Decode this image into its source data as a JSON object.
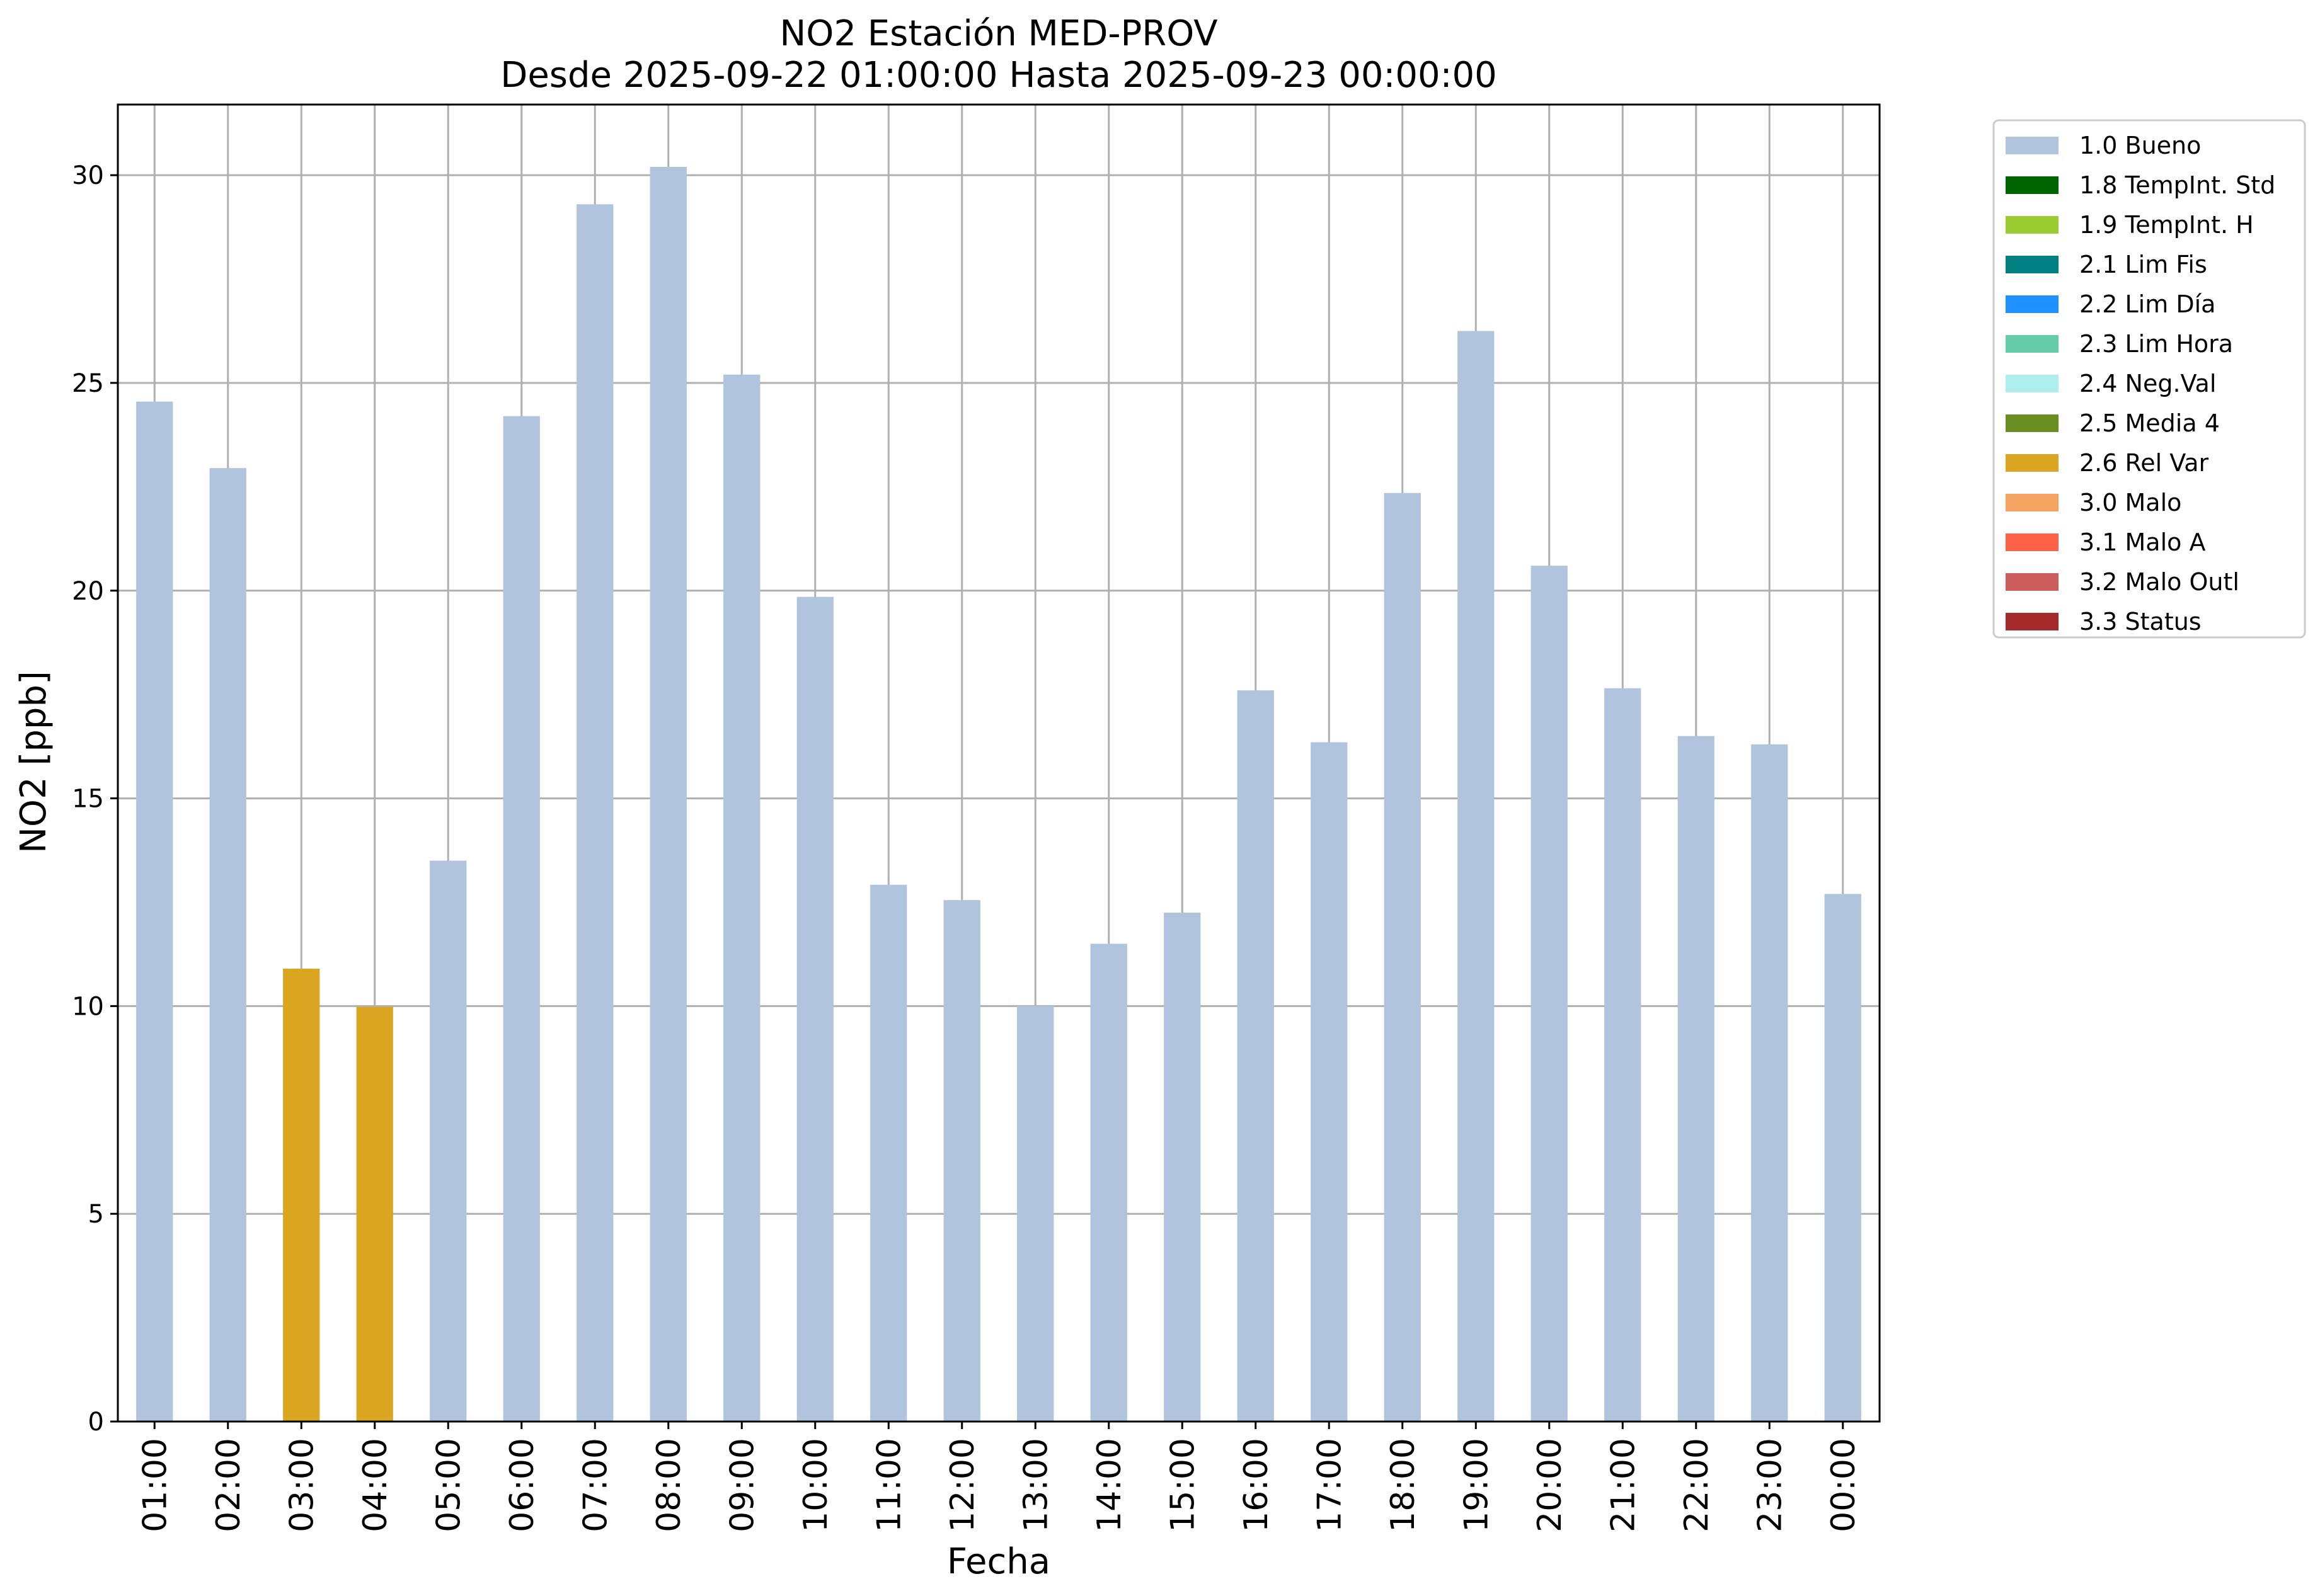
{
  "chart_data": {
    "type": "bar",
    "title": "NO2 Estación MED-PROV",
    "subtitle": "Desde 2025-09-22 01:00:00 Hasta 2025-09-23 00:00:00",
    "xlabel": "Fecha",
    "ylabel": "NO2 [ppb]",
    "ylim": [
      0,
      31.7
    ],
    "yticks": [
      0,
      5,
      10,
      15,
      20,
      25,
      30
    ],
    "grid": true,
    "legend_position": "outside-right-top",
    "categories": [
      "01:00",
      "02:00",
      "03:00",
      "04:00",
      "05:00",
      "06:00",
      "07:00",
      "08:00",
      "09:00",
      "10:00",
      "11:00",
      "12:00",
      "13:00",
      "14:00",
      "15:00",
      "16:00",
      "17:00",
      "18:00",
      "19:00",
      "20:00",
      "21:00",
      "22:00",
      "23:00",
      "00:00"
    ],
    "values": [
      24.55,
      22.95,
      10.9,
      9.98,
      13.5,
      24.2,
      29.3,
      30.2,
      25.2,
      19.85,
      12.92,
      12.55,
      10.0,
      11.5,
      12.25,
      17.6,
      16.35,
      22.35,
      26.25,
      20.6,
      17.65,
      16.5,
      16.3,
      12.7
    ],
    "value_flags": [
      "1.0 Bueno",
      "1.0 Bueno",
      "2.6 Rel Var",
      "2.6 Rel Var",
      "1.0 Bueno",
      "1.0 Bueno",
      "1.0 Bueno",
      "1.0 Bueno",
      "1.0 Bueno",
      "1.0 Bueno",
      "1.0 Bueno",
      "1.0 Bueno",
      "1.0 Bueno",
      "1.0 Bueno",
      "1.0 Bueno",
      "1.0 Bueno",
      "1.0 Bueno",
      "1.0 Bueno",
      "1.0 Bueno",
      "1.0 Bueno",
      "1.0 Bueno",
      "1.0 Bueno",
      "1.0 Bueno",
      "1.0 Bueno"
    ],
    "legend": [
      {
        "label": "1.0 Bueno",
        "color": "#b0c4de"
      },
      {
        "label": "1.8 TempInt. Std",
        "color": "#006400"
      },
      {
        "label": "1.9 TempInt. H",
        "color": "#9acd32"
      },
      {
        "label": "2.1 Lim Fis",
        "color": "#008080"
      },
      {
        "label": "2.2 Lim Día",
        "color": "#1e90ff"
      },
      {
        "label": "2.3 Lim Hora",
        "color": "#66cdaa"
      },
      {
        "label": "2.4 Neg.Val",
        "color": "#afeeee"
      },
      {
        "label": "2.5 Media 4",
        "color": "#6b8e23"
      },
      {
        "label": "2.6 Rel Var",
        "color": "#daa520"
      },
      {
        "label": "3.0 Malo",
        "color": "#f4a460"
      },
      {
        "label": "3.1 Malo A",
        "color": "#ff6347"
      },
      {
        "label": "3.2 Malo Outl",
        "color": "#cd5c5c"
      },
      {
        "label": "3.3 Status",
        "color": "#a52a2a"
      }
    ]
  }
}
